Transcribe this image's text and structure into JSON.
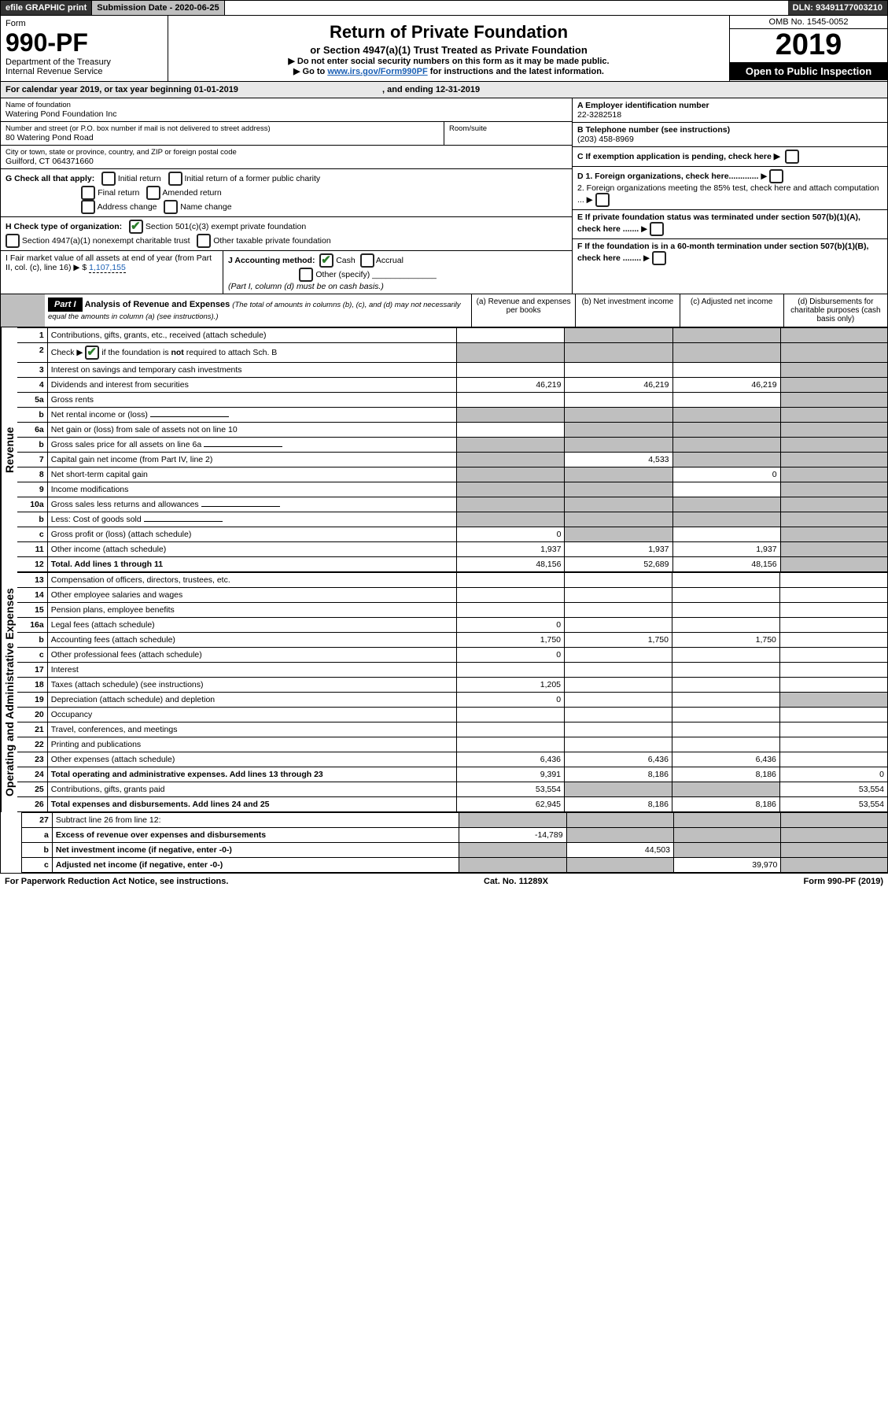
{
  "top": {
    "efile": "efile GRAPHIC print",
    "sub_label": "Submission Date - 2020-06-25",
    "dln": "DLN: 93491177003210"
  },
  "header": {
    "form": "Form",
    "form_no": "990-PF",
    "dept1": "Department of the Treasury",
    "dept2": "Internal Revenue Service",
    "title": "Return of Private Foundation",
    "subtitle": "or Section 4947(a)(1) Trust Treated as Private Foundation",
    "note1": "▶ Do not enter social security numbers on this form as it may be made public.",
    "note2_pre": "▶ Go to ",
    "note2_link": "www.irs.gov/Form990PF",
    "note2_post": " for instructions and the latest information.",
    "omb": "OMB No. 1545-0052",
    "year": "2019",
    "open": "Open to Public Inspection"
  },
  "cal": {
    "text_pre": "For calendar year 2019, or tax year beginning ",
    "begin": "01-01-2019",
    "mid": " , and ending ",
    "end": "12-31-2019"
  },
  "info": {
    "name_label": "Name of foundation",
    "name": "Watering Pond Foundation Inc",
    "addr_label": "Number and street (or P.O. box number if mail is not delivered to street address)",
    "addr": "80 Watering Pond Road",
    "room_label": "Room/suite",
    "city_label": "City or town, state or province, country, and ZIP or foreign postal code",
    "city": "Guilford, CT  064371660",
    "ein_label": "A Employer identification number",
    "ein": "22-3282518",
    "tel_label": "B Telephone number (see instructions)",
    "tel": "(203) 458-8969",
    "c_label": "C  If exemption application is pending, check here ▶",
    "g_label": "G Check all that apply:",
    "g_opts": [
      "Initial return",
      "Initial return of a former public charity",
      "Final return",
      "Amended return",
      "Address change",
      "Name change"
    ],
    "d1": "D 1. Foreign organizations, check here.............",
    "d2": "2. Foreign organizations meeting the 85% test, check here and attach computation ...",
    "h_label": "H Check type of organization:",
    "h1": "Section 501(c)(3) exempt private foundation",
    "h2": "Section 4947(a)(1) nonexempt charitable trust",
    "h3": "Other taxable private foundation",
    "e_label": "E  If private foundation status was terminated under section 507(b)(1)(A), check here .......",
    "i_label": "I Fair market value of all assets at end of year (from Part II, col. (c), line 16) ▶ $ ",
    "i_val": "1,107,155",
    "j_label": "J Accounting method:",
    "j_cash": "Cash",
    "j_accrual": "Accrual",
    "j_other": "Other (specify)",
    "j_note": "(Part I, column (d) must be on cash basis.)",
    "f_label": "F  If the foundation is in a 60-month termination under section 507(b)(1)(B), check here ........"
  },
  "part1": {
    "label": "Part I",
    "title": "Analysis of Revenue and Expenses",
    "title_note": "(The total of amounts in columns (b), (c), and (d) may not necessarily equal the amounts in column (a) (see instructions).)",
    "col_a": "(a) Revenue and expenses per books",
    "col_b": "(b) Net investment income",
    "col_c": "(c) Adjusted net income",
    "col_d": "(d) Disbursements for charitable purposes (cash basis only)"
  },
  "revenue_label": "Revenue",
  "expenses_label": "Operating and Administrative Expenses",
  "rows": [
    {
      "n": "1",
      "t": "Contributions, gifts, grants, etc., received (attach schedule)",
      "a": "",
      "b": "g",
      "c": "g",
      "d": "g"
    },
    {
      "n": "2",
      "t": "Check ▶ [✔] if the foundation is not required to attach Sch. B",
      "a": "g",
      "b": "g",
      "c": "g",
      "d": "g",
      "check": true
    },
    {
      "n": "3",
      "t": "Interest on savings and temporary cash investments",
      "a": "",
      "b": "",
      "c": "",
      "d": "g"
    },
    {
      "n": "4",
      "t": "Dividends and interest from securities",
      "a": "46,219",
      "b": "46,219",
      "c": "46,219",
      "d": "g"
    },
    {
      "n": "5a",
      "t": "Gross rents",
      "a": "",
      "b": "",
      "c": "",
      "d": "g"
    },
    {
      "n": "b",
      "t": "Net rental income or (loss)",
      "a": "g",
      "b": "g",
      "c": "g",
      "d": "g",
      "inline": true
    },
    {
      "n": "6a",
      "t": "Net gain or (loss) from sale of assets not on line 10",
      "a": "",
      "b": "g",
      "c": "g",
      "d": "g"
    },
    {
      "n": "b",
      "t": "Gross sales price for all assets on line 6a",
      "a": "g",
      "b": "g",
      "c": "g",
      "d": "g",
      "inline": true
    },
    {
      "n": "7",
      "t": "Capital gain net income (from Part IV, line 2)",
      "a": "g",
      "b": "4,533",
      "c": "g",
      "d": "g"
    },
    {
      "n": "8",
      "t": "Net short-term capital gain",
      "a": "g",
      "b": "g",
      "c": "0",
      "d": "g"
    },
    {
      "n": "9",
      "t": "Income modifications",
      "a": "g",
      "b": "g",
      "c": "",
      "d": "g"
    },
    {
      "n": "10a",
      "t": "Gross sales less returns and allowances",
      "a": "g",
      "b": "g",
      "c": "g",
      "d": "g",
      "inline": true
    },
    {
      "n": "b",
      "t": "Less: Cost of goods sold",
      "a": "g",
      "b": "g",
      "c": "g",
      "d": "g",
      "inline": true
    },
    {
      "n": "c",
      "t": "Gross profit or (loss) (attach schedule)",
      "a": "0",
      "b": "g",
      "c": "",
      "d": "g"
    },
    {
      "n": "11",
      "t": "Other income (attach schedule)",
      "a": "1,937",
      "b": "1,937",
      "c": "1,937",
      "d": "g"
    },
    {
      "n": "12",
      "t": "Total. Add lines 1 through 11",
      "a": "48,156",
      "b": "52,689",
      "c": "48,156",
      "d": "g",
      "bold": true
    }
  ],
  "exp_rows": [
    {
      "n": "13",
      "t": "Compensation of officers, directors, trustees, etc.",
      "a": "",
      "b": "",
      "c": "",
      "d": ""
    },
    {
      "n": "14",
      "t": "Other employee salaries and wages",
      "a": "",
      "b": "",
      "c": "",
      "d": ""
    },
    {
      "n": "15",
      "t": "Pension plans, employee benefits",
      "a": "",
      "b": "",
      "c": "",
      "d": ""
    },
    {
      "n": "16a",
      "t": "Legal fees (attach schedule)",
      "a": "0",
      "b": "",
      "c": "",
      "d": ""
    },
    {
      "n": "b",
      "t": "Accounting fees (attach schedule)",
      "a": "1,750",
      "b": "1,750",
      "c": "1,750",
      "d": ""
    },
    {
      "n": "c",
      "t": "Other professional fees (attach schedule)",
      "a": "0",
      "b": "",
      "c": "",
      "d": ""
    },
    {
      "n": "17",
      "t": "Interest",
      "a": "",
      "b": "",
      "c": "",
      "d": ""
    },
    {
      "n": "18",
      "t": "Taxes (attach schedule) (see instructions)",
      "a": "1,205",
      "b": "",
      "c": "",
      "d": ""
    },
    {
      "n": "19",
      "t": "Depreciation (attach schedule) and depletion",
      "a": "0",
      "b": "",
      "c": "",
      "d": "g"
    },
    {
      "n": "20",
      "t": "Occupancy",
      "a": "",
      "b": "",
      "c": "",
      "d": ""
    },
    {
      "n": "21",
      "t": "Travel, conferences, and meetings",
      "a": "",
      "b": "",
      "c": "",
      "d": ""
    },
    {
      "n": "22",
      "t": "Printing and publications",
      "a": "",
      "b": "",
      "c": "",
      "d": ""
    },
    {
      "n": "23",
      "t": "Other expenses (attach schedule)",
      "a": "6,436",
      "b": "6,436",
      "c": "6,436",
      "d": ""
    },
    {
      "n": "24",
      "t": "Total operating and administrative expenses. Add lines 13 through 23",
      "a": "9,391",
      "b": "8,186",
      "c": "8,186",
      "d": "0",
      "bold": true
    },
    {
      "n": "25",
      "t": "Contributions, gifts, grants paid",
      "a": "53,554",
      "b": "g",
      "c": "g",
      "d": "53,554"
    },
    {
      "n": "26",
      "t": "Total expenses and disbursements. Add lines 24 and 25",
      "a": "62,945",
      "b": "8,186",
      "c": "8,186",
      "d": "53,554",
      "bold": true
    }
  ],
  "sub_rows": [
    {
      "n": "27",
      "t": "Subtract line 26 from line 12:",
      "a": "g",
      "b": "g",
      "c": "g",
      "d": "g"
    },
    {
      "n": "a",
      "t": "Excess of revenue over expenses and disbursements",
      "a": "-14,789",
      "b": "g",
      "c": "g",
      "d": "g",
      "bold": true
    },
    {
      "n": "b",
      "t": "Net investment income (if negative, enter -0-)",
      "a": "g",
      "b": "44,503",
      "c": "g",
      "d": "g",
      "bold": true
    },
    {
      "n": "c",
      "t": "Adjusted net income (if negative, enter -0-)",
      "a": "g",
      "b": "g",
      "c": "39,970",
      "d": "g",
      "bold": true
    }
  ],
  "footer": {
    "left": "For Paperwork Reduction Act Notice, see instructions.",
    "mid": "Cat. No. 11289X",
    "right": "Form 990-PF (2019)"
  },
  "colors": {
    "grey": "#bfbfbf",
    "link": "#1a5fb4",
    "green": "#2a7d2a"
  }
}
